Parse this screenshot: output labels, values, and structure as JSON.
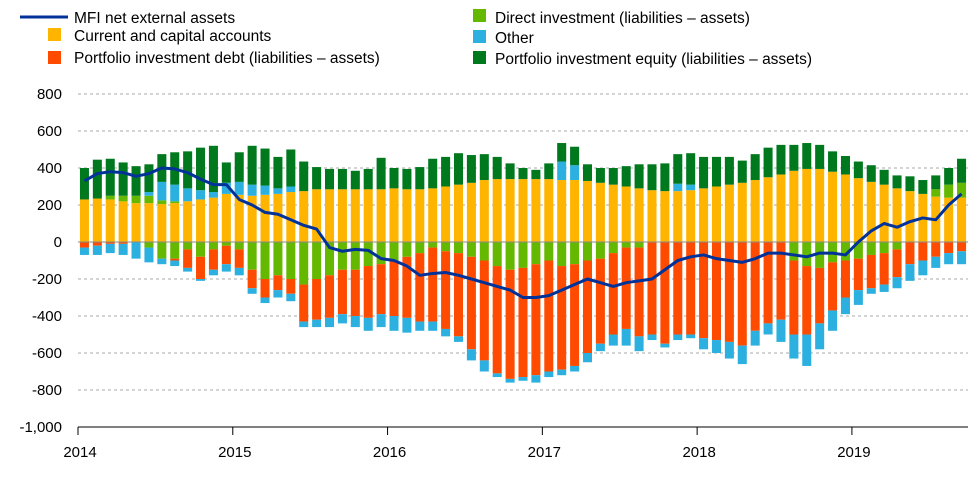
{
  "chart_data": {
    "type": "bar",
    "subtype": "stacked bar with line overlay",
    "title": "",
    "xlabel": "",
    "ylabel": "",
    "ylim": [
      -1000,
      800
    ],
    "y_ticks": [
      "800",
      "600",
      "400",
      "200",
      "0",
      "-200",
      "-400",
      "-600",
      "-800",
      "-1,000"
    ],
    "y_tick_values": [
      800,
      600,
      400,
      200,
      0,
      -200,
      -400,
      -600,
      -800,
      -1000
    ],
    "x_ticks": [
      "2014",
      "2015",
      "2016",
      "2017",
      "2018",
      "2019"
    ],
    "grid": "horizontal dashed",
    "legend_position": "top",
    "months": [
      "2014-01",
      "2014-02",
      "2014-03",
      "2014-04",
      "2014-05",
      "2014-06",
      "2014-07",
      "2014-08",
      "2014-09",
      "2014-10",
      "2014-11",
      "2014-12",
      "2015-01",
      "2015-02",
      "2015-03",
      "2015-04",
      "2015-05",
      "2015-06",
      "2015-07",
      "2015-08",
      "2015-09",
      "2015-10",
      "2015-11",
      "2015-12",
      "2016-01",
      "2016-02",
      "2016-03",
      "2016-04",
      "2016-05",
      "2016-06",
      "2016-07",
      "2016-08",
      "2016-09",
      "2016-10",
      "2016-11",
      "2016-12",
      "2017-01",
      "2017-02",
      "2017-03",
      "2017-04",
      "2017-05",
      "2017-06",
      "2017-07",
      "2017-08",
      "2017-09",
      "2017-10",
      "2017-11",
      "2017-12",
      "2018-01",
      "2018-02",
      "2018-03",
      "2018-04",
      "2018-05",
      "2018-06",
      "2018-07",
      "2018-08",
      "2018-09",
      "2018-10",
      "2018-11",
      "2018-12",
      "2019-01",
      "2019-02",
      "2019-03",
      "2019-04",
      "2019-05",
      "2019-06",
      "2019-07",
      "2019-08",
      "2019-09"
    ],
    "series": [
      {
        "name": "Current and capital accounts",
        "kind": "bar",
        "color": "#FFB400",
        "values": [
          230,
          235,
          230,
          220,
          210,
          210,
          205,
          210,
          220,
          230,
          240,
          260,
          255,
          250,
          255,
          260,
          270,
          275,
          285,
          285,
          285,
          285,
          285,
          285,
          290,
          285,
          285,
          290,
          300,
          310,
          320,
          335,
          340,
          340,
          340,
          340,
          340,
          335,
          335,
          330,
          320,
          310,
          300,
          290,
          280,
          275,
          275,
          280,
          290,
          300,
          310,
          320,
          335,
          350,
          365,
          385,
          395,
          395,
          380,
          365,
          345,
          325,
          310,
          290,
          275,
          260,
          245,
          240,
          240
        ]
      },
      {
        "name": "Direct investment (liabilities – assets)",
        "kind": "bar",
        "color": "#65B800",
        "values": [
          0,
          0,
          20,
          30,
          40,
          40,
          20,
          10,
          0,
          0,
          0,
          0,
          0,
          0,
          0,
          0,
          0,
          0,
          0,
          0,
          0,
          0,
          0,
          0,
          0,
          0,
          0,
          0,
          0,
          0,
          0,
          0,
          0,
          0,
          0,
          0,
          0,
          0,
          0,
          0,
          0,
          0,
          0,
          0,
          0,
          0,
          0,
          0,
          0,
          0,
          0,
          0,
          0,
          0,
          0,
          0,
          0,
          0,
          0,
          0,
          0,
          0,
          0,
          0,
          0,
          0,
          40,
          70,
          80
        ]
      },
      {
        "name": "Other",
        "kind": "bar",
        "color": "#2CB0E0",
        "values": [
          0,
          0,
          0,
          0,
          0,
          20,
          100,
          90,
          70,
          50,
          30,
          60,
          70,
          60,
          50,
          30,
          30,
          0,
          0,
          0,
          0,
          0,
          0,
          0,
          0,
          0,
          0,
          0,
          0,
          0,
          0,
          0,
          0,
          0,
          0,
          0,
          0,
          100,
          80,
          0,
          0,
          0,
          0,
          0,
          0,
          0,
          40,
          30,
          0,
          0,
          0,
          0,
          0,
          0,
          0,
          0,
          0,
          0,
          0,
          0,
          0,
          0,
          0,
          0,
          0,
          0,
          0,
          0,
          0
        ]
      },
      {
        "name": "Portfolio investment equity (liabilities – assets)",
        "kind": "bar",
        "color": "#00781E",
        "values": [
          170,
          210,
          200,
          180,
          160,
          150,
          150,
          175,
          200,
          230,
          250,
          110,
          160,
          210,
          200,
          170,
          200,
          160,
          120,
          110,
          110,
          100,
          110,
          170,
          110,
          110,
          120,
          160,
          160,
          170,
          150,
          140,
          120,
          85,
          60,
          50,
          85,
          100,
          100,
          90,
          80,
          90,
          110,
          130,
          140,
          150,
          160,
          170,
          170,
          160,
          150,
          120,
          140,
          160,
          160,
          140,
          140,
          130,
          110,
          100,
          90,
          90,
          80,
          70,
          80,
          75,
          75,
          90,
          130
        ]
      },
      {
        "name": "Direct investment (liabilities – assets)",
        "kind": "bar",
        "color": "#65B800",
        "values": [
          0,
          0,
          0,
          0,
          0,
          -30,
          -90,
          -90,
          -40,
          -80,
          -40,
          -20,
          -40,
          -150,
          -200,
          -180,
          -200,
          -230,
          -200,
          -180,
          -150,
          -150,
          -130,
          -120,
          -100,
          -80,
          -60,
          -30,
          -50,
          -60,
          -80,
          -100,
          -130,
          -150,
          -140,
          -120,
          -100,
          -130,
          -120,
          -100,
          -90,
          -60,
          -30,
          -30,
          0,
          0,
          0,
          0,
          0,
          0,
          0,
          0,
          0,
          0,
          0,
          -100,
          -130,
          -140,
          -110,
          -100,
          -90,
          -70,
          -60,
          -40,
          0,
          0,
          0,
          0,
          0
        ]
      },
      {
        "name": "Portfolio investment debt (liabilities – assets)",
        "kind": "bar",
        "color": "#FF4B00",
        "values": [
          -30,
          -20,
          -10,
          -10,
          0,
          0,
          0,
          -10,
          -100,
          -120,
          -110,
          -100,
          -100,
          -100,
          -100,
          -80,
          -80,
          -200,
          -220,
          -230,
          -240,
          -250,
          -280,
          -270,
          -300,
          -330,
          -370,
          -400,
          -420,
          -450,
          -500,
          -540,
          -580,
          -590,
          -590,
          -600,
          -600,
          -560,
          -550,
          -500,
          -460,
          -440,
          -440,
          -480,
          -500,
          -550,
          -500,
          -500,
          -520,
          -530,
          -540,
          -560,
          -480,
          -440,
          -420,
          -400,
          -370,
          -300,
          -260,
          -200,
          -170,
          -180,
          -170,
          -150,
          -120,
          -100,
          -80,
          -60,
          -50
        ]
      },
      {
        "name": "Other",
        "kind": "bar",
        "color": "#2CB0E0",
        "values": [
          -40,
          -50,
          -50,
          -60,
          -90,
          -80,
          -30,
          -30,
          -20,
          -10,
          -30,
          -40,
          -40,
          -30,
          -30,
          -40,
          -40,
          -30,
          -40,
          -50,
          -50,
          -60,
          -70,
          -70,
          -80,
          -80,
          -50,
          -50,
          -40,
          -30,
          -60,
          -60,
          -20,
          -20,
          -20,
          -40,
          -30,
          -30,
          -30,
          -50,
          -40,
          -60,
          -90,
          -80,
          -30,
          -20,
          -30,
          -20,
          -60,
          -70,
          -90,
          -100,
          -80,
          -60,
          -120,
          -130,
          -170,
          -140,
          -110,
          -90,
          -80,
          -30,
          -40,
          -60,
          -90,
          -80,
          -60,
          -60,
          -70
        ]
      },
      {
        "name": "MFI  net external assets",
        "kind": "line",
        "color": "#003299",
        "values": [
          330,
          370,
          380,
          375,
          355,
          370,
          400,
          395,
          375,
          340,
          310,
          310,
          230,
          200,
          160,
          150,
          120,
          90,
          70,
          -30,
          -50,
          -40,
          -45,
          -90,
          -100,
          -130,
          -180,
          -170,
          -165,
          -180,
          -200,
          -220,
          -240,
          -260,
          -300,
          -300,
          -290,
          -260,
          -230,
          -200,
          -220,
          -240,
          -220,
          -210,
          -200,
          -150,
          -100,
          -80,
          -70,
          -90,
          -100,
          -110,
          -90,
          -60,
          -60,
          -70,
          -80,
          -60,
          -60,
          -70,
          0,
          60,
          100,
          80,
          110,
          130,
          120,
          200,
          260
        ]
      }
    ]
  },
  "legend": {
    "items": [
      {
        "label": "MFI  net external assets",
        "color": "#003299",
        "kind": "line"
      },
      {
        "label": "Current and capital accounts",
        "color": "#FFB400",
        "kind": "box"
      },
      {
        "label": "Portfolio investment debt (liabilities – assets)",
        "color": "#FF4B00",
        "kind": "box"
      },
      {
        "label": "Direct investment (liabilities – assets)",
        "color": "#65B800",
        "kind": "box"
      },
      {
        "label": "Other",
        "color": "#2CB0E0",
        "kind": "box"
      },
      {
        "label": "Portfolio investment equity (liabilities – assets)",
        "color": "#00781E",
        "kind": "box"
      }
    ]
  }
}
